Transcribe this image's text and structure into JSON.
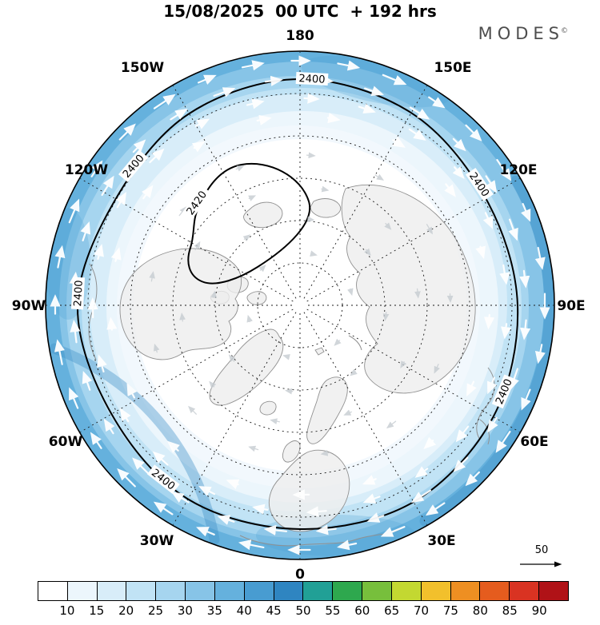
{
  "header": {
    "title": "15/08/2025  00 UTC  + 192 hrs",
    "logo": "MODES",
    "logo_mark": "©"
  },
  "chart_data": {
    "type": "filled_contour_map",
    "projection": "north_polar_stereographic",
    "shaded_field": "wind speed, <10 near pole (white) increasing to about 25-30 at the map edge (blues)",
    "title": "15/08/2025  00 UTC  + 192 hrs",
    "longitude_labels": [
      "180",
      "150W",
      "150E",
      "120W",
      "120E",
      "90W",
      "90E",
      "60W",
      "60E",
      "30W",
      "30E",
      "0"
    ],
    "contours": {
      "outer_label": "2400",
      "inner_label": "2420"
    },
    "colorbar": {
      "ticks": [
        "10",
        "15",
        "20",
        "25",
        "30",
        "35",
        "40",
        "45",
        "50",
        "55",
        "60",
        "65",
        "70",
        "75",
        "80",
        "85",
        "90"
      ],
      "colors": [
        "#ffffff",
        "#ecf6fc",
        "#d8edf9",
        "#c1e3f5",
        "#a6d5ef",
        "#87c4e7",
        "#65b1dd",
        "#489cd1",
        "#2f85c1",
        "#21a096",
        "#2ea84e",
        "#77bf3c",
        "#c3d831",
        "#f2c02c",
        "#ee8f22",
        "#e55c1e",
        "#d93322",
        "#b01217"
      ]
    },
    "wind_reference": {
      "value": "50"
    },
    "legend_position": "bottom",
    "grid": "dashed graticule, meridians every 30 deg"
  }
}
